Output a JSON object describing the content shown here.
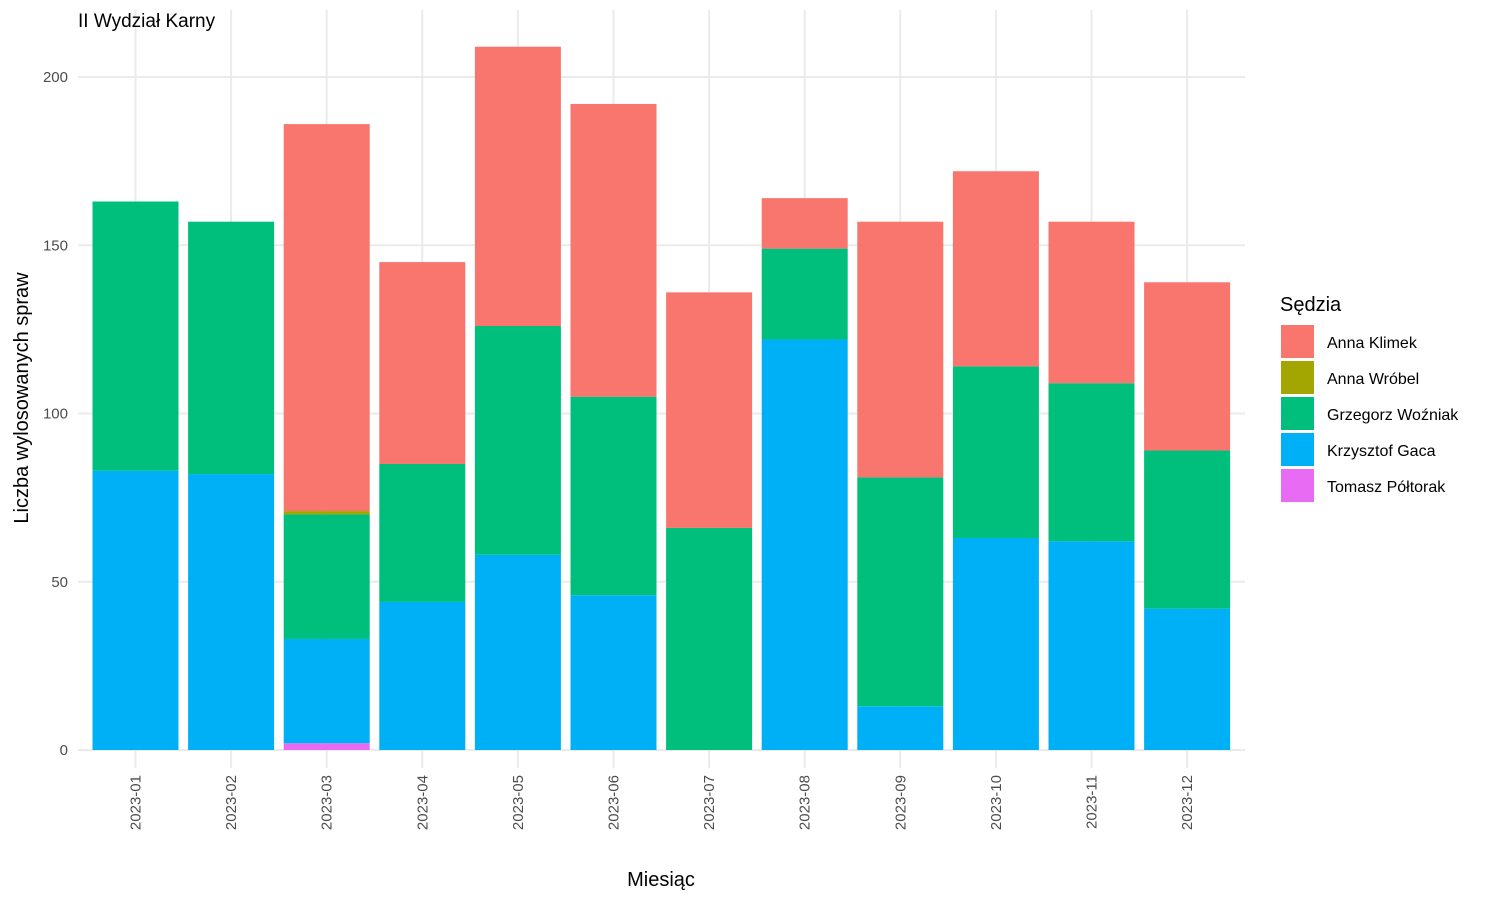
{
  "chart_data": {
    "type": "bar",
    "stacked": true,
    "title": "II Wydział Karny",
    "xlabel": "Miesiąc",
    "ylabel": "Liczba wylosowanych spraw",
    "categories": [
      "2023-01",
      "2023-02",
      "2023-03",
      "2023-04",
      "2023-05",
      "2023-06",
      "2023-07",
      "2023-08",
      "2023-09",
      "2023-10",
      "2023-11",
      "2023-12"
    ],
    "ylim": [
      0,
      215
    ],
    "yticks": [
      0,
      50,
      100,
      150,
      200
    ],
    "grid": true,
    "legend": {
      "title": "Sędzia",
      "placement": "right"
    },
    "series": [
      {
        "name": "Tomasz Półtorak",
        "color": "#E76BF3",
        "values": [
          0,
          0,
          2,
          0,
          0,
          0,
          0,
          0,
          0,
          0,
          0,
          0
        ]
      },
      {
        "name": "Krzysztof Gaca",
        "color": "#00B0F6",
        "values": [
          83,
          82,
          31,
          44,
          58,
          46,
          0,
          122,
          13,
          63,
          62,
          42
        ]
      },
      {
        "name": "Grzegorz Woźniak",
        "color": "#00BF7D",
        "values": [
          80,
          75,
          37,
          41,
          68,
          59,
          66,
          27,
          68,
          51,
          47,
          47
        ]
      },
      {
        "name": "Anna Wróbel",
        "color": "#A3A500",
        "values": [
          0,
          0,
          1,
          0,
          0,
          0,
          0,
          0,
          0,
          0,
          0,
          0
        ]
      },
      {
        "name": "Anna Klimek",
        "color": "#F8766D",
        "values": [
          0,
          0,
          115,
          60,
          83,
          87,
          70,
          15,
          76,
          58,
          48,
          50
        ]
      }
    ],
    "legend_order": [
      "Anna Klimek",
      "Anna Wróbel",
      "Grzegorz Woźniak",
      "Krzysztof Gaca",
      "Tomasz Półtorak"
    ]
  }
}
